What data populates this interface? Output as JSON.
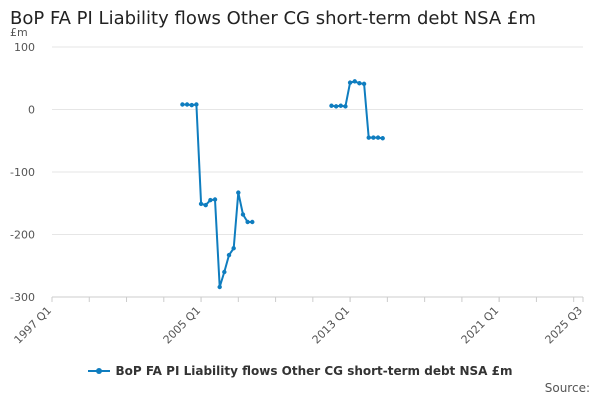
{
  "title": "BoP FA PI Liability flows Other CG short-term debt NSA £m",
  "source_label": "Source:",
  "colors": {
    "series": "#0f7dbf",
    "grid": "#e6e6e6",
    "axis": "#cccccc"
  },
  "chart_data": {
    "type": "line",
    "title": "BoP FA PI Liability flows Other CG short-term debt NSA £m",
    "ylabel": "£m",
    "ylim": [
      -300,
      100
    ],
    "yticks": [
      100,
      0,
      -100,
      -200,
      -300
    ],
    "xlim": [
      "1997 Q1",
      "2025 Q3"
    ],
    "xticks": [
      "1997 Q1",
      "2005 Q1",
      "2013 Q1",
      "2021 Q1",
      "2025 Q3"
    ],
    "grid": true,
    "legend_position": "bottom",
    "series": [
      {
        "name": "BoP FA PI Liability flows Other CG short-term debt NSA £m",
        "segments": [
          {
            "x": [
              "2004 Q1",
              "2004 Q2",
              "2004 Q3",
              "2004 Q4",
              "2005 Q1",
              "2005 Q2",
              "2005 Q3",
              "2005 Q4",
              "2006 Q1",
              "2006 Q2",
              "2006 Q3",
              "2006 Q4",
              "2007 Q1",
              "2007 Q2",
              "2007 Q3",
              "2007 Q4",
              "2008 Q1"
            ],
            "y": [
              8,
              8,
              7,
              8,
              -151,
              -153,
              -145,
              -144,
              -284,
              -260,
              -233,
              -222,
              -133,
              -168,
              -180,
              -180,
              null
            ]
          },
          {
            "x": [
              "2012 Q1",
              "2012 Q2",
              "2012 Q3",
              "2012 Q4",
              "2013 Q1",
              "2013 Q2",
              "2013 Q3",
              "2013 Q4",
              "2014 Q1",
              "2014 Q2",
              "2014 Q3",
              "2014 Q4"
            ],
            "y": [
              6,
              5,
              6,
              5,
              43,
              45,
              42,
              41,
              -45,
              -45,
              -45,
              -46
            ]
          }
        ]
      }
    ]
  }
}
